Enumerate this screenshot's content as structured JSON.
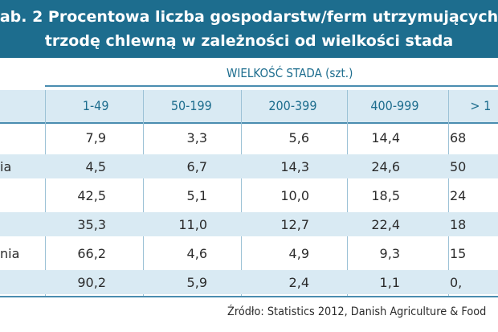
{
  "title": {
    "line1": "ab. 2 Procentowa liczba gospodarstw/ferm utrzymujących",
    "line2": "trzodę chlewną w zależności od wielkości stada"
  },
  "table": {
    "group_header": "WIELKOŚĆ STADA (szt.)",
    "columns": [
      "1-49",
      "50-199",
      "200-399",
      "400-999",
      "> 1"
    ],
    "rows": [
      {
        "country": "",
        "values": [
          "7,9",
          "3,3",
          "5,6",
          "14,4",
          "68"
        ]
      },
      {
        "country": "ia",
        "values": [
          "4,5",
          "6,7",
          "14,3",
          "24,6",
          "50"
        ]
      },
      {
        "country": "",
        "values": [
          "42,5",
          "5,1",
          "10,0",
          "18,5",
          "24"
        ]
      },
      {
        "country": "",
        "values": [
          "35,3",
          "11,0",
          "12,7",
          "22,4",
          "18"
        ]
      },
      {
        "country": "nia",
        "values": [
          "66,2",
          "4,6",
          "4,9",
          "9,3",
          "15"
        ]
      },
      {
        "country": "",
        "values": [
          "90,2",
          "5,9",
          "2,4",
          "1,1",
          "0,"
        ]
      }
    ]
  },
  "source": "Źródło: Statistics 2012, Danish Agriculture & Food"
}
